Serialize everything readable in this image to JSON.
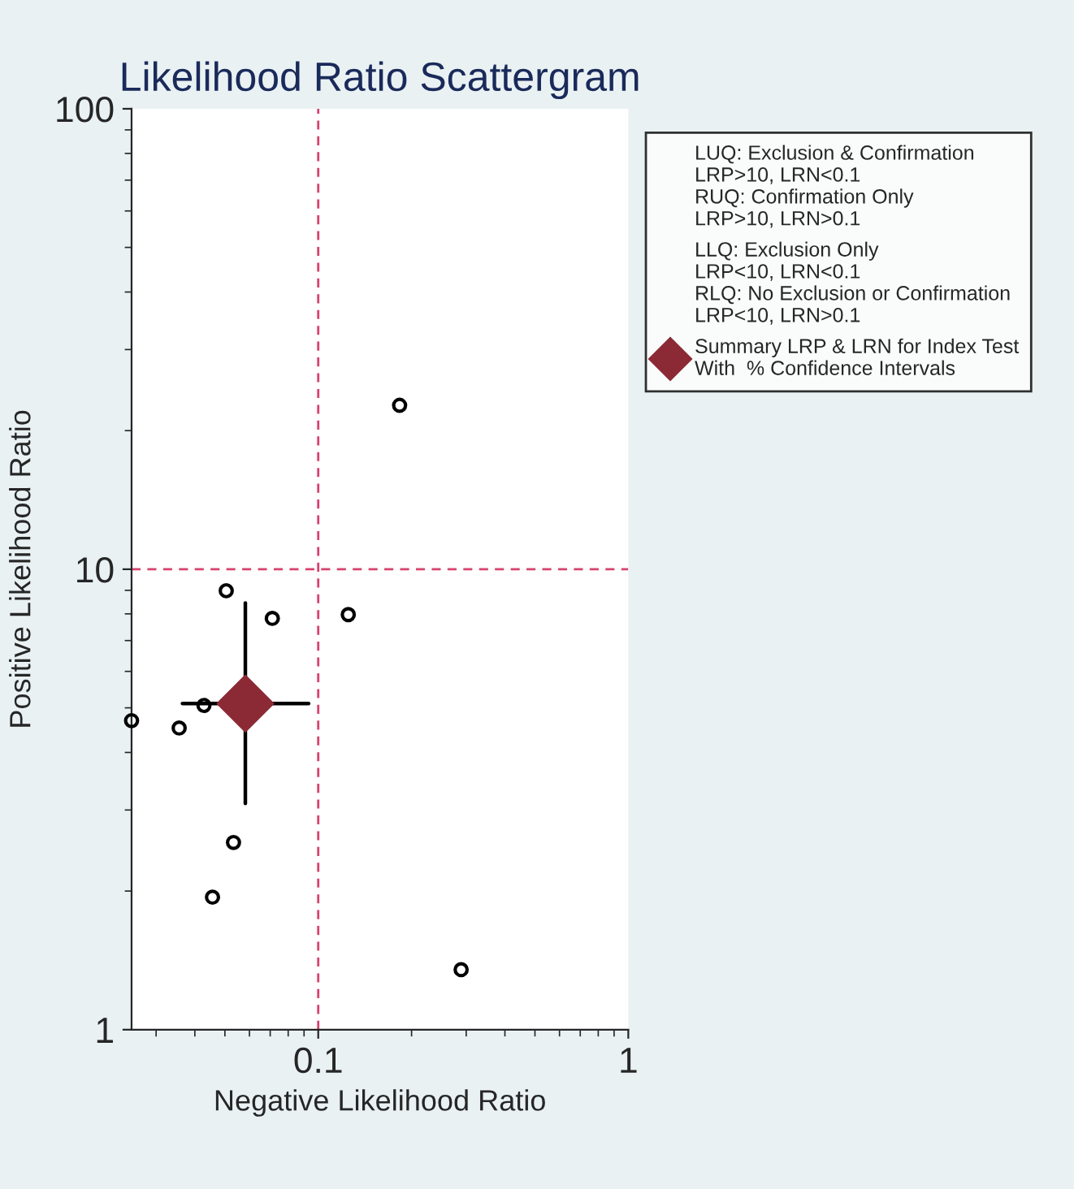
{
  "chart_data": {
    "type": "scatter",
    "title": "Likelihood Ratio Scattergram",
    "xlabel": "Negative Likelihood Ratio",
    "ylabel": "Positive Likelihood Ratio",
    "log": "xy",
    "xlim": [
      0.025,
      1
    ],
    "xticks": [
      0.1,
      1
    ],
    "ylim": [
      1,
      100
    ],
    "yticks": [
      1,
      10,
      100
    ],
    "series": [
      {
        "marker": "circle",
        "color": "#000000",
        "x": [
          0.025,
          0.0356,
          0.0428,
          0.0505,
          0.0711,
          0.125,
          0.0533,
          0.0456,
          0.289,
          0.183
        ],
        "values": [
          4.69,
          4.52,
          5.06,
          8.98,
          7.82,
          7.97,
          2.55,
          1.94,
          1.35,
          22.7
        ]
      },
      {
        "marker": "diamond",
        "name": "Summary LRP & LRN for Index Test\nWith  % Confidence Intervals",
        "color": "#8b2a35",
        "x": [
          0.0582
        ],
        "values": [
          5.11
        ],
        "errors": [
          [
            3.1,
            8.45
          ]
        ],
        "xerrors": [
          [
            0.0365,
            0.0931
          ]
        ]
      }
    ],
    "ref_lines": [
      {
        "axis": "x",
        "value": 0.1,
        "color": "#d6436e",
        "line_style": "dashed"
      },
      {
        "axis": "y",
        "value": 10,
        "color": "#d6436e",
        "line_style": "dashed"
      }
    ],
    "annotations": [
      "LUQ: Exclusion & Confirmation\nLRP>10, LRN<0.1\nRUQ: Confirmation Only\nLRP>10, LRN>0.1",
      "LLQ: Exclusion Only\nLRP<10, LRN<0.1\nRLQ: No Exclusion or Confirmation\nLRP<10, LRN>0.1"
    ],
    "legend": "right",
    "grid": false
  }
}
